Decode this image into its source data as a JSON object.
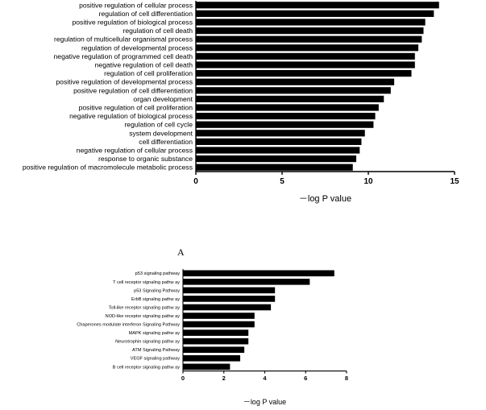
{
  "panel_label": "A",
  "chart_data": [
    {
      "type": "bar",
      "orientation": "horizontal",
      "categories": [
        "positive regulation of cellular process",
        "regulation of cell differentiation",
        "positive regulation of biological process",
        "regulation of cell death",
        "regulation of multicellular organismal process",
        "regulation of developmental process",
        "negative regulation of programmed cell death",
        "negative regulation of cell death",
        "regulation of cell proliferation",
        "positive regulation of developmental process",
        "positive regulation of cell differentiation",
        "organ development",
        "positive regulation of cell proliferation",
        "negative regulation of biological process",
        "regulation of cell cycle",
        "system development",
        "cell differentiation",
        "negative regulation of cellular process",
        "response to organic substance",
        "positive regulation of macromolecule metabolic process"
      ],
      "values": [
        14.1,
        13.8,
        13.3,
        13.2,
        13.1,
        12.9,
        12.7,
        12.7,
        12.5,
        11.5,
        11.3,
        10.9,
        10.6,
        10.4,
        10.3,
        9.8,
        9.6,
        9.5,
        9.3,
        9.1
      ],
      "xlim": [
        0,
        15
      ],
      "xticks": [
        "0",
        "5",
        "10",
        "15"
      ],
      "xlabel": "－log P value",
      "ylabel": ""
    },
    {
      "type": "bar",
      "orientation": "horizontal",
      "categories": [
        "p53 signaling pathway",
        "T cell receptor signaling pathw ay",
        "p53 Signaling Pathway",
        "ErbB signaling pathw ay",
        "Toll-like receptor signaling pathw ay",
        "NOD-like receptor signaling pathw ay",
        "Chaperones modulate interferon Signaling Pathway",
        "MAPK signaling pathw ay",
        "Neurotrophin signaling pathw ay",
        "ATM Signaling Pathway",
        "VEGF signaling pathway",
        "B cell receptor signaling pathw ay"
      ],
      "values": [
        7.4,
        6.2,
        4.5,
        4.5,
        4.3,
        3.5,
        3.5,
        3.2,
        3.2,
        3.0,
        2.8,
        2.3
      ],
      "xlim": [
        0,
        8
      ],
      "xticks": [
        "0",
        "2",
        "4",
        "6",
        "8"
      ],
      "xlabel": "－log P value",
      "ylabel": ""
    }
  ]
}
